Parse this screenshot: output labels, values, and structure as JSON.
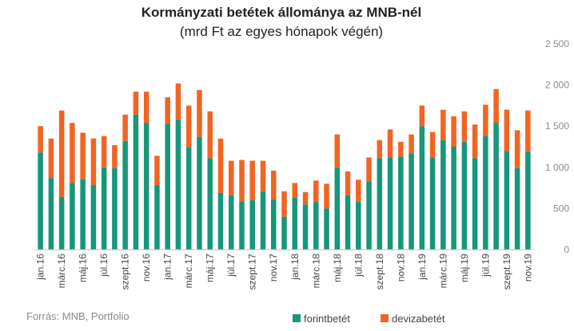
{
  "chart_data": {
    "type": "bar",
    "stacked": true,
    "title": "Kormányzati betétek állománya az MNB-nél",
    "subtitle": "(mrd Ft az egyes hónapok végén)",
    "ylim": [
      0,
      2500
    ],
    "yticks": [
      0,
      500,
      1000,
      1500,
      2000,
      2500
    ],
    "ytick_labels": [
      "0",
      "500",
      "1 000",
      "1 500",
      "2 000",
      "2 500"
    ],
    "y_axis_side": "right",
    "tick_labels": [
      "jan.16",
      "márc.16",
      "máj.16",
      "júl.16",
      "szept.16",
      "nov.16",
      "jan.17",
      "márc.17",
      "máj.17",
      "júl.17",
      "szept.17",
      "nov.17",
      "jan.18",
      "márc.18",
      "máj.18",
      "júl.18",
      "szept.18",
      "nov.18",
      "jan.19",
      "márc.19",
      "máj.19",
      "júl.19",
      "szept.19",
      "nov.19"
    ],
    "categories": [
      "jan.16",
      "febr.16",
      "márc.16",
      "ápr.16",
      "máj.16",
      "jún.16",
      "júl.16",
      "aug.16",
      "szept.16",
      "okt.16",
      "nov.16",
      "dec.16",
      "jan.17",
      "febr.17",
      "márc.17",
      "ápr.17",
      "máj.17",
      "jún.17",
      "júl.17",
      "aug.17",
      "szept.17",
      "okt.17",
      "nov.17",
      "dec.17",
      "jan.18",
      "febr.18",
      "márc.18",
      "ápr.18",
      "máj.18",
      "jún.18",
      "júl.18",
      "aug.18",
      "szept.18",
      "okt.18",
      "nov.18",
      "dec.18",
      "jan.19",
      "febr.19",
      "márc.19",
      "ápr.19",
      "máj.19",
      "jún.19",
      "júl.19",
      "aug.19",
      "szept.19",
      "okt.19",
      "nov.19"
    ],
    "series": [
      {
        "name": "forintbetét",
        "color": "#16967a",
        "values": [
          1180,
          870,
          640,
          810,
          860,
          780,
          1000,
          990,
          1320,
          1640,
          1540,
          780,
          1530,
          1580,
          1240,
          1370,
          1110,
          690,
          660,
          590,
          600,
          710,
          610,
          400,
          630,
          550,
          580,
          500,
          1000,
          660,
          580,
          830,
          1110,
          1120,
          1130,
          1170,
          1500,
          1120,
          1330,
          1250,
          1310,
          1110,
          1380,
          1540,
          1200,
          990,
          1190
        ]
      },
      {
        "name": "devizabetét",
        "color": "#f26422",
        "values": [
          320,
          480,
          1050,
          730,
          560,
          570,
          380,
          280,
          320,
          280,
          380,
          360,
          320,
          440,
          510,
          570,
          570,
          660,
          420,
          500,
          480,
          370,
          350,
          310,
          180,
          150,
          260,
          300,
          400,
          290,
          270,
          290,
          220,
          340,
          180,
          230,
          250,
          310,
          370,
          370,
          370,
          410,
          380,
          410,
          500,
          460,
          500
        ]
      }
    ],
    "legend_position": "bottom-right",
    "source": "Forrás: MNB, Portfolio",
    "grid": false
  }
}
